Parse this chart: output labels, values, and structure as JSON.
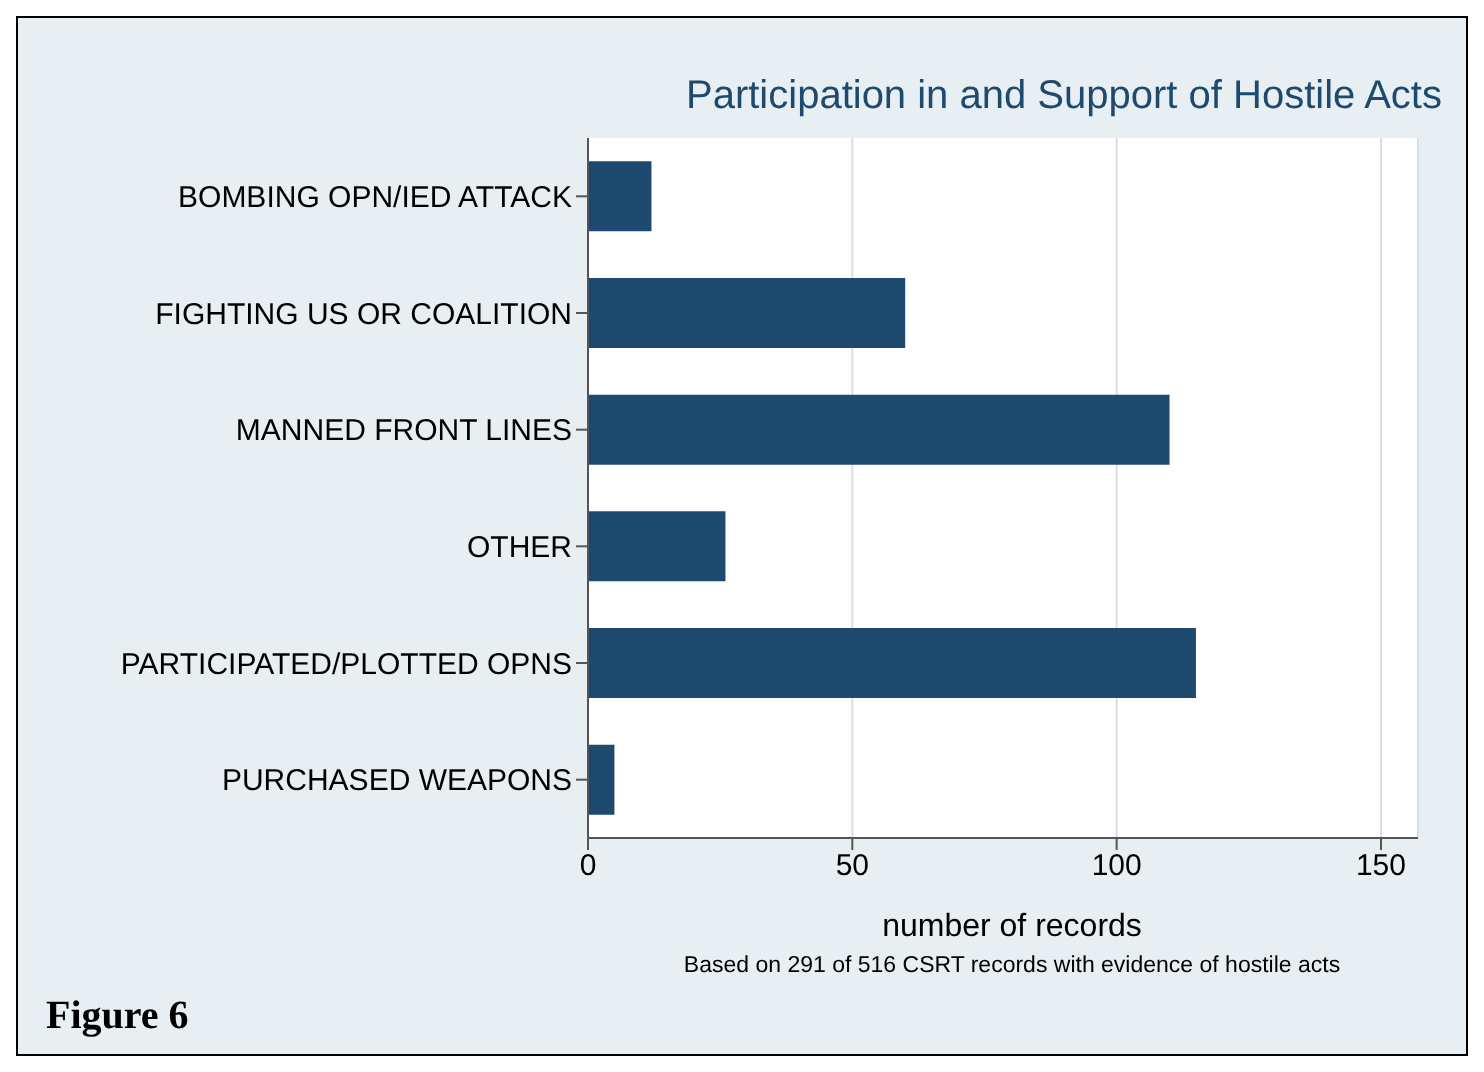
{
  "chart_data": {
    "type": "bar",
    "orientation": "horizontal",
    "title": "Participation in and Support of Hostile Acts",
    "categories": [
      "BOMBING OPN/IED ATTACK",
      "FIGHTING US OR COALITION",
      "MANNED FRONT LINES",
      "OTHER",
      "PARTICIPATED/PLOTTED OPNS",
      "PURCHASED WEAPONS"
    ],
    "values": [
      12,
      60,
      110,
      26,
      115,
      5
    ],
    "color": "#1f4a70",
    "xlabel": "number of records",
    "xlim": [
      0,
      157
    ],
    "xticks": [
      0,
      50,
      100,
      150
    ],
    "grid": "x",
    "annotations": [
      "Based on 291 of 516 CSRT records with evidence of hostile acts",
      "Figure 6"
    ]
  }
}
